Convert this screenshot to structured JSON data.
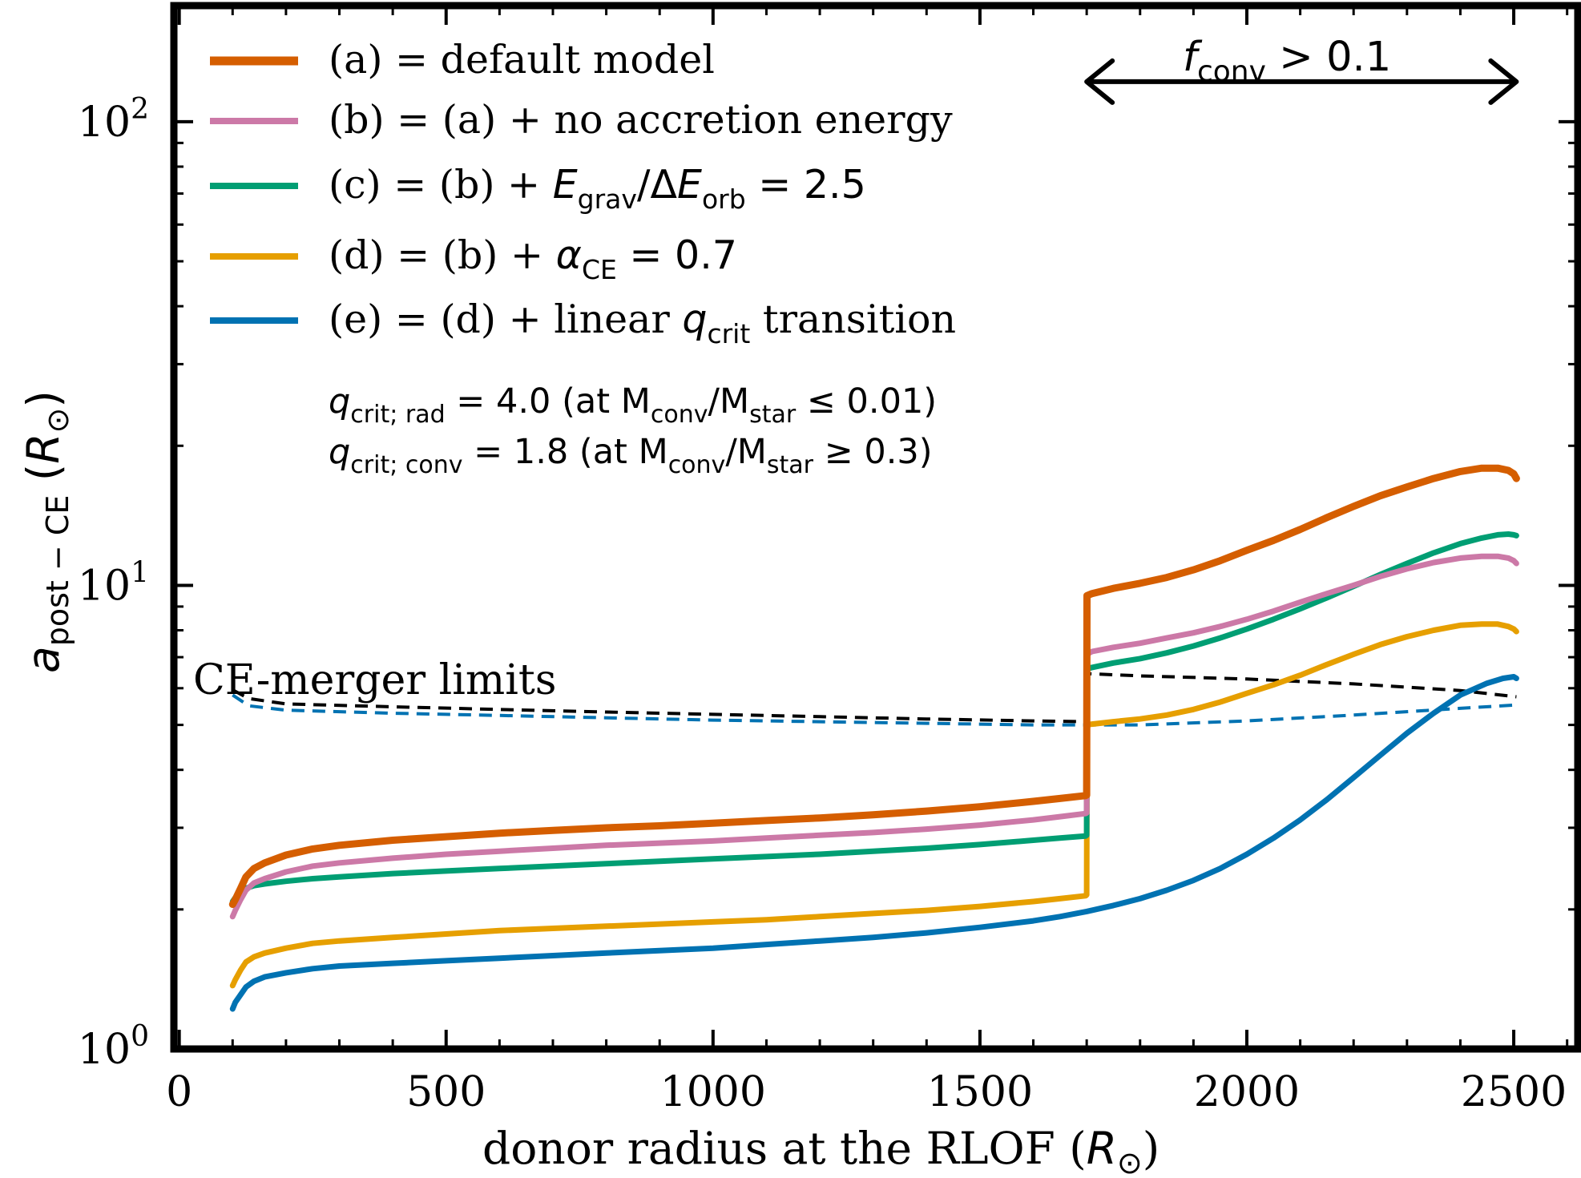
{
  "chart_data": {
    "type": "line",
    "xlabel": "donor radius at the RLOF (R⊙)",
    "ylabel": "a post−CE (R⊙)",
    "xlim": [
      -10,
      2620
    ],
    "ylim": [
      1.0,
      178
    ],
    "yscale": "log",
    "grid": false,
    "legend_position": "top-left",
    "x_ticks": [
      {
        "value": 0,
        "label": "0"
      },
      {
        "value": 500,
        "label": "500"
      },
      {
        "value": 1000,
        "label": "1000"
      },
      {
        "value": 1500,
        "label": "1500"
      },
      {
        "value": 2000,
        "label": "2000"
      },
      {
        "value": 2500,
        "label": "2500"
      }
    ],
    "y_ticks": [
      {
        "value": 1,
        "label": "10",
        "exp": "0"
      },
      {
        "value": 10,
        "label": "10",
        "exp": "1"
      },
      {
        "value": 100,
        "label": "10",
        "exp": "2"
      }
    ],
    "series": [
      {
        "name": "(a) = default model",
        "color": "#d55e00",
        "width": 9,
        "x": [
          100,
          105,
          115,
          125,
          140,
          160,
          200,
          250,
          300,
          400,
          500,
          600,
          700,
          800,
          900,
          1000,
          1100,
          1200,
          1300,
          1400,
          1500,
          1600,
          1650,
          1698,
          1700,
          1700.5,
          1710,
          1750,
          1800,
          1850,
          1900,
          1950,
          2000,
          2050,
          2100,
          2150,
          2200,
          2250,
          2300,
          2350,
          2400,
          2440,
          2470,
          2490,
          2500,
          2505
        ],
        "y": [
          2.05,
          2.1,
          2.22,
          2.35,
          2.45,
          2.52,
          2.62,
          2.7,
          2.75,
          2.82,
          2.87,
          2.92,
          2.96,
          3.0,
          3.03,
          3.07,
          3.11,
          3.15,
          3.2,
          3.26,
          3.33,
          3.42,
          3.47,
          3.52,
          3.53,
          9.5,
          9.6,
          9.85,
          10.1,
          10.4,
          10.8,
          11.3,
          11.9,
          12.5,
          13.2,
          14.0,
          14.8,
          15.6,
          16.3,
          17.0,
          17.6,
          17.9,
          17.9,
          17.7,
          17.4,
          17.0
        ]
      },
      {
        "name": "(b) = (a) + no accretion energy",
        "color": "#cc79a7",
        "width": 7,
        "x": [
          100,
          105,
          115,
          125,
          140,
          160,
          200,
          250,
          300,
          400,
          500,
          600,
          700,
          800,
          900,
          1000,
          1100,
          1200,
          1300,
          1400,
          1500,
          1600,
          1650,
          1698,
          1700,
          1700.5,
          1710,
          1750,
          1800,
          1850,
          1900,
          1950,
          2000,
          2050,
          2100,
          2150,
          2200,
          2250,
          2300,
          2350,
          2400,
          2440,
          2470,
          2490,
          2500,
          2505
        ],
        "y": [
          1.93,
          1.99,
          2.1,
          2.2,
          2.28,
          2.33,
          2.41,
          2.48,
          2.52,
          2.58,
          2.63,
          2.67,
          2.71,
          2.75,
          2.78,
          2.81,
          2.85,
          2.89,
          2.93,
          2.98,
          3.04,
          3.12,
          3.17,
          3.22,
          3.23,
          7.1,
          7.2,
          7.35,
          7.5,
          7.7,
          7.9,
          8.15,
          8.45,
          8.8,
          9.2,
          9.6,
          10.0,
          10.45,
          10.85,
          11.2,
          11.45,
          11.55,
          11.55,
          11.45,
          11.3,
          11.15
        ]
      },
      {
        "name": "(c) = (b) + Egrav/ΔEorb = 2.5",
        "color": "#009e73",
        "width": 7,
        "x": [
          100,
          105,
          115,
          125,
          140,
          160,
          200,
          250,
          300,
          400,
          500,
          600,
          700,
          800,
          900,
          1000,
          1100,
          1200,
          1300,
          1400,
          1500,
          1600,
          1650,
          1698,
          1700,
          1700.5,
          1710,
          1750,
          1800,
          1850,
          1900,
          1950,
          2000,
          2050,
          2100,
          2150,
          2200,
          2250,
          2300,
          2350,
          2400,
          2440,
          2470,
          2490,
          2500,
          2505
        ],
        "y": [
          2.08,
          2.12,
          2.18,
          2.22,
          2.25,
          2.27,
          2.3,
          2.33,
          2.35,
          2.39,
          2.42,
          2.45,
          2.48,
          2.51,
          2.54,
          2.57,
          2.6,
          2.63,
          2.67,
          2.71,
          2.76,
          2.82,
          2.85,
          2.88,
          2.89,
          6.6,
          6.65,
          6.8,
          6.95,
          7.15,
          7.4,
          7.7,
          8.05,
          8.45,
          8.9,
          9.4,
          9.95,
          10.55,
          11.15,
          11.75,
          12.3,
          12.65,
          12.85,
          12.9,
          12.85,
          12.8
        ]
      },
      {
        "name": "(d) = (b) + αCE = 0.7",
        "color": "#e69f00",
        "width": 7,
        "x": [
          100,
          105,
          115,
          125,
          140,
          160,
          200,
          250,
          300,
          400,
          500,
          600,
          700,
          800,
          900,
          1000,
          1100,
          1200,
          1300,
          1400,
          1500,
          1600,
          1650,
          1698,
          1700,
          1700.5,
          1710,
          1750,
          1800,
          1850,
          1900,
          1950,
          2000,
          2050,
          2100,
          2150,
          2200,
          2250,
          2300,
          2350,
          2400,
          2440,
          2470,
          2490,
          2500,
          2505
        ],
        "y": [
          1.37,
          1.41,
          1.48,
          1.54,
          1.58,
          1.61,
          1.65,
          1.69,
          1.71,
          1.74,
          1.77,
          1.8,
          1.82,
          1.84,
          1.86,
          1.88,
          1.9,
          1.93,
          1.96,
          1.99,
          2.03,
          2.08,
          2.11,
          2.14,
          2.15,
          5.0,
          5.02,
          5.08,
          5.15,
          5.25,
          5.4,
          5.6,
          5.85,
          6.1,
          6.4,
          6.75,
          7.1,
          7.45,
          7.75,
          8.0,
          8.2,
          8.25,
          8.25,
          8.15,
          8.05,
          7.95
        ]
      },
      {
        "name": "(e) = (d) + linear qcrit transition",
        "color": "#0072b2",
        "width": 7,
        "x": [
          100,
          105,
          115,
          125,
          140,
          160,
          200,
          250,
          300,
          400,
          500,
          600,
          700,
          800,
          900,
          1000,
          1100,
          1200,
          1300,
          1400,
          1500,
          1600,
          1650,
          1700,
          1750,
          1800,
          1850,
          1900,
          1950,
          2000,
          2050,
          2100,
          2150,
          2200,
          2250,
          2300,
          2350,
          2400,
          2450,
          2480,
          2500,
          2505
        ],
        "y": [
          1.22,
          1.26,
          1.31,
          1.36,
          1.4,
          1.43,
          1.46,
          1.49,
          1.51,
          1.53,
          1.55,
          1.57,
          1.59,
          1.61,
          1.63,
          1.65,
          1.68,
          1.71,
          1.74,
          1.78,
          1.83,
          1.89,
          1.93,
          1.98,
          2.04,
          2.11,
          2.2,
          2.31,
          2.45,
          2.63,
          2.85,
          3.12,
          3.45,
          3.85,
          4.3,
          4.8,
          5.3,
          5.8,
          6.15,
          6.3,
          6.35,
          6.3
        ]
      }
    ],
    "limit_series": [
      {
        "name": "CE-merger limit (black)",
        "color": "#000000",
        "width": 4,
        "dash": "16 10",
        "x": [
          100,
          130,
          200,
          400,
          600,
          800,
          1000,
          1200,
          1400,
          1600,
          1698,
          1700,
          1800,
          2000,
          2200,
          2400,
          2505
        ],
        "y": [
          5.95,
          5.7,
          5.55,
          5.47,
          5.4,
          5.33,
          5.27,
          5.21,
          5.15,
          5.1,
          5.08,
          6.45,
          6.38,
          6.28,
          6.13,
          5.93,
          5.75
        ]
      },
      {
        "name": "CE-merger limit (blue)",
        "color": "#0072b2",
        "width": 4,
        "dash": "16 10",
        "x": [
          100,
          130,
          200,
          400,
          600,
          800,
          1000,
          1200,
          1400,
          1600,
          1700,
          1800,
          2000,
          2200,
          2400,
          2505
        ],
        "y": [
          5.8,
          5.5,
          5.38,
          5.3,
          5.24,
          5.18,
          5.12,
          5.08,
          5.04,
          5.0,
          5.0,
          5.0,
          5.1,
          5.25,
          5.43,
          5.52
        ]
      }
    ],
    "arrow": {
      "x_start": 1700,
      "x_end": 2505,
      "y": 122
    },
    "annotations": {
      "fconv": {
        "base": "f",
        "sub": "conv",
        "rest": " > 0.1"
      },
      "ce_merger": "CE-merger limits",
      "qcrit_rad": {
        "base": "q",
        "sub": "crit; rad",
        "eq": " = 4.0",
        "paren": "  (at M",
        "sub2": "conv",
        "mid": "/M",
        "sub3": "star",
        "end": " ≤ 0.01)"
      },
      "qcrit_conv": {
        "base": "q",
        "sub": "crit; conv",
        "eq": " = 1.8",
        "paren": "  (at M",
        "sub2": "conv",
        "mid": "/M",
        "sub3": "star",
        "end": " ≥ 0.3)"
      }
    },
    "legend": [
      {
        "pre": "(a) = default model"
      },
      {
        "pre": "(b) = (a) + no accretion energy"
      },
      {
        "pre": "(c) = (b) + ",
        "m1": "E",
        "m1sub": "grav",
        "m2": "/Δ",
        "m3": "E",
        "m3sub": "orb",
        "post": " = 2.5"
      },
      {
        "pre": "(d) = (b) + ",
        "m1": "α",
        "m1sub": "CE",
        "post": " = 0.7"
      },
      {
        "pre": "(e) = (d) + linear ",
        "m1": "q",
        "m1sub": "crit",
        "post": " transition"
      }
    ],
    "xlabel_parts": {
      "text": "donor radius at the RLOF (",
      "italic": "R",
      "sub": "⊙",
      "close": ")"
    },
    "ylabel_parts": {
      "italic": "a",
      "sub": "post − CE",
      "open": " (",
      "italic2": "R",
      "sub2": "⊙",
      "close": ")"
    }
  }
}
